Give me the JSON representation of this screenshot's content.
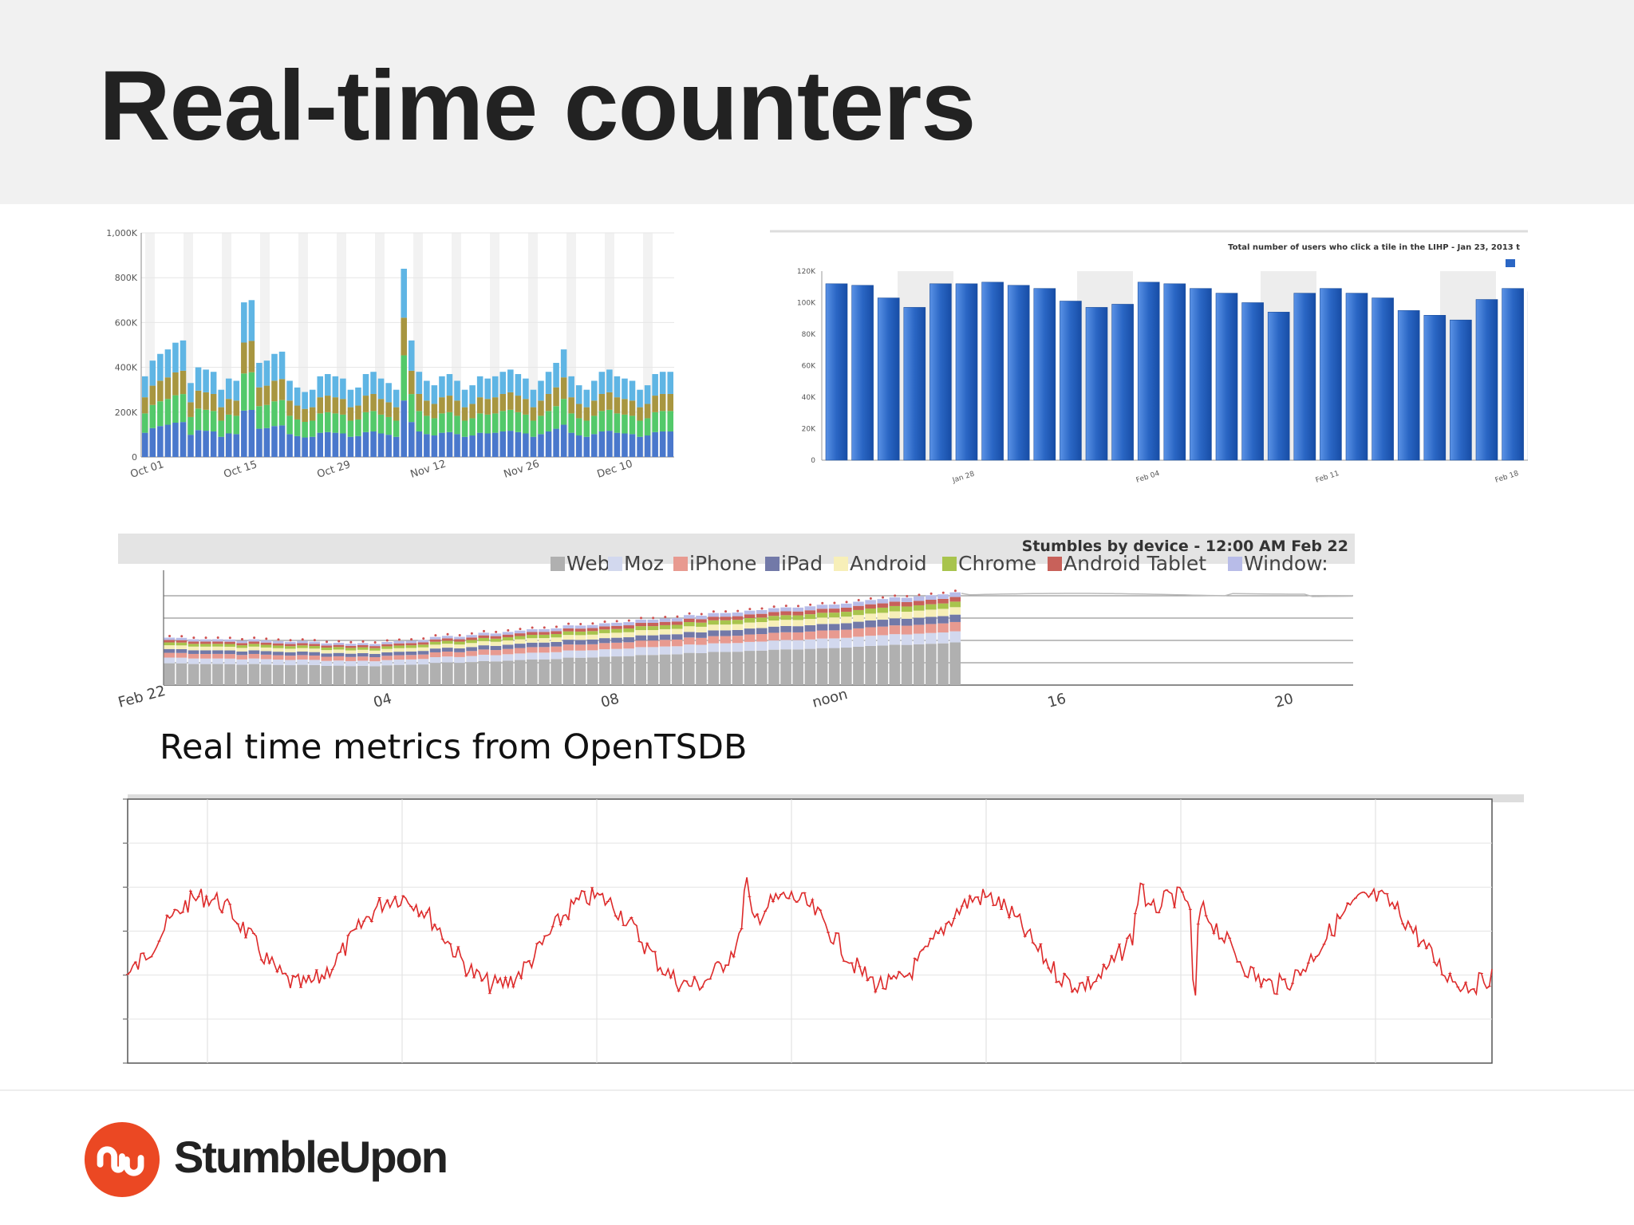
{
  "slide": {
    "title": "Real-time counters",
    "caption": "Real time metrics from OpenTSDB",
    "brand": "StumbleUpon",
    "colors": {
      "header_bg": "#f1f1f1",
      "brand_orange": "#eb4823"
    }
  },
  "chart_data": [
    {
      "type": "bar",
      "stacked": true,
      "yticks": [
        "0",
        "200K",
        "400K",
        "600K",
        "800K",
        "1,000K"
      ],
      "ylim": [
        0,
        1000
      ],
      "xticks": [
        "Oct 01",
        "Oct 15",
        "Oct 29",
        "Nov 12",
        "Nov 26",
        "Dec 10",
        "De"
      ],
      "series_colors": [
        "#4a78cc",
        "#53c96a",
        "#a89640",
        "#5fb5e4"
      ],
      "totals": [
        360,
        430,
        460,
        480,
        510,
        520,
        330,
        400,
        390,
        380,
        300,
        350,
        340,
        690,
        700,
        420,
        430,
        460,
        470,
        340,
        310,
        290,
        300,
        360,
        370,
        360,
        350,
        300,
        310,
        370,
        380,
        350,
        330,
        300,
        840,
        520,
        380,
        340,
        320,
        360,
        370,
        340,
        300,
        320,
        360,
        350,
        360,
        380,
        390,
        370,
        350,
        300,
        340,
        380,
        420,
        480,
        360,
        320,
        300,
        340,
        380,
        390,
        360,
        350,
        340,
        300,
        320,
        370,
        380,
        380
      ]
    },
    {
      "type": "bar",
      "title": "Total number of users who click a tile in the LIHP - Jan 23, 2013 t",
      "yticks": [
        "0",
        "20K",
        "40K",
        "60K",
        "80K",
        "100K",
        "120K"
      ],
      "ylim": [
        0,
        120
      ],
      "xticks": [
        "Jan 28",
        "Feb 04",
        "Feb 11",
        "Feb 18"
      ],
      "bar_color": "#2a66c4",
      "values": [
        112,
        111,
        103,
        97,
        112,
        112,
        113,
        111,
        109,
        101,
        97,
        99,
        113,
        112,
        109,
        106,
        100,
        94,
        106,
        109,
        106,
        103,
        95,
        92,
        89,
        102,
        109,
        107
      ]
    },
    {
      "type": "bar",
      "stacked": true,
      "title": "Stumbles by device - 12:00 AM Feb 22",
      "legend": [
        "Web",
        "Moz",
        "iPhone",
        "iPad",
        "Android",
        "Chrome",
        "Android Tablet",
        "Window:"
      ],
      "legend_colors": [
        "#b0b0b0",
        "#d2d8ee",
        "#e89a90",
        "#7279a8",
        "#f7efb8",
        "#a8c44d",
        "#c8615a",
        "#b8bce8"
      ],
      "xticks": [
        "Feb 22",
        "04",
        "08",
        "noon",
        "16",
        "20"
      ]
    },
    {
      "type": "line",
      "line_color": "#dd2a2a"
    }
  ]
}
